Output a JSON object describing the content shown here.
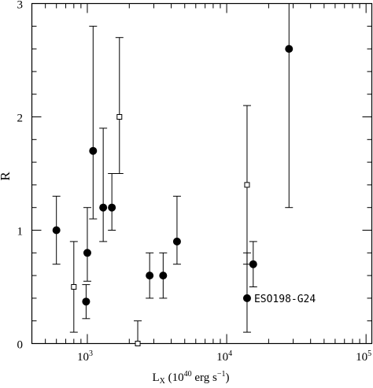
{
  "chart_data": {
    "type": "scatter",
    "title": "",
    "xlabel": {
      "base": "L",
      "sub": "X",
      "rest": " (10",
      "exp": "40",
      "unit": " erg s",
      "unit_exp": "−1",
      "close": ")"
    },
    "ylabel": "R",
    "x_scale": "log",
    "xlim": [
      400,
      110000
    ],
    "ylim": [
      0,
      3
    ],
    "x_ticks": [
      {
        "value": 1000,
        "base": "10",
        "exp": "3"
      },
      {
        "value": 10000,
        "base": "10",
        "exp": "4"
      },
      {
        "value": 100000,
        "base": "10",
        "exp": "5"
      }
    ],
    "y_ticks": [
      {
        "value": 0,
        "label": "0"
      },
      {
        "value": 1,
        "label": "1"
      },
      {
        "value": 2,
        "label": "2"
      },
      {
        "value": 3,
        "label": "3"
      }
    ],
    "series": [
      {
        "marker": "filled-circle",
        "points": [
          {
            "x": 600,
            "y": 1.0,
            "ylo": 0.7,
            "yhi": 1.3
          },
          {
            "x": 980,
            "y": 0.37,
            "ylo": 0.22,
            "yhi": 0.52
          },
          {
            "x": 1000,
            "y": 0.8,
            "ylo": 0.55,
            "yhi": 1.2
          },
          {
            "x": 1100,
            "y": 1.7,
            "ylo": 1.1,
            "yhi": 2.8
          },
          {
            "x": 1300,
            "y": 1.2,
            "ylo": 0.9,
            "yhi": 1.9
          },
          {
            "x": 1500,
            "y": 1.2,
            "ylo": 1.0,
            "yhi": 1.5
          },
          {
            "x": 2800,
            "y": 0.6,
            "ylo": 0.4,
            "yhi": 0.8
          },
          {
            "x": 3500,
            "y": 0.6,
            "ylo": 0.4,
            "yhi": 0.8
          },
          {
            "x": 4400,
            "y": 0.9,
            "ylo": 0.7,
            "yhi": 1.3
          },
          {
            "x": 14000,
            "y": 0.4,
            "ylo": 0.1,
            "yhi": 0.8
          },
          {
            "x": 15500,
            "y": 0.7,
            "ylo": 0.5,
            "yhi": 0.9
          },
          {
            "x": 28000,
            "y": 2.6,
            "ylo": 1.2,
            "yhi": 3.0
          }
        ]
      },
      {
        "marker": "open-square",
        "points": [
          {
            "x": 800,
            "y": 0.5,
            "ylo": 0.1,
            "yhi": 0.9
          },
          {
            "x": 1700,
            "y": 2.0,
            "ylo": 1.5,
            "yhi": 2.7
          },
          {
            "x": 2300,
            "y": 0.0,
            "ylo": 0.0,
            "yhi": 0.2
          },
          {
            "x": 14000,
            "y": 1.4,
            "ylo": 0.7,
            "yhi": 2.1
          }
        ]
      }
    ],
    "annotations": [
      {
        "text": "ESO198-G24",
        "x": 14000,
        "y": 0.4
      }
    ]
  }
}
